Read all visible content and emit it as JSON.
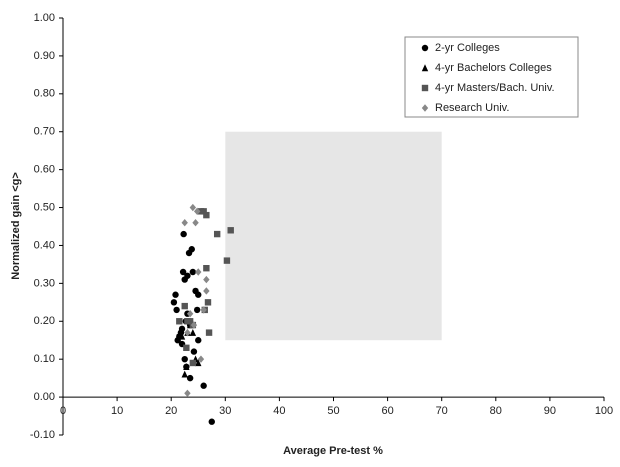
{
  "chart_data": {
    "type": "scatter",
    "x_label": "Average Pre-test %",
    "y_label": "Normalized gain <g>",
    "xlim": [
      0,
      100
    ],
    "xticks": [
      0,
      10,
      20,
      30,
      40,
      50,
      60,
      70,
      80,
      90,
      100
    ],
    "ylim": [
      -0.1,
      1.0
    ],
    "yticks": [
      {
        "value": -0.1,
        "label": "-0.10"
      },
      {
        "value": 0,
        "label": "0.00"
      },
      {
        "value": 0.1,
        "label": "0.10"
      },
      {
        "value": 0.2,
        "label": "0.20"
      },
      {
        "value": 0.3,
        "label": "0.30"
      },
      {
        "value": 0.4,
        "label": "0.40"
      },
      {
        "value": 0.5,
        "label": "0.50"
      },
      {
        "value": 0.6,
        "label": "0.60"
      },
      {
        "value": 0.7,
        "label": "0.70"
      },
      {
        "value": 0.8,
        "label": "0.80"
      },
      {
        "value": 0.9,
        "label": "0.90"
      },
      {
        "value": 1.0,
        "label": "1.00"
      }
    ],
    "grid": false,
    "legend": "top-right",
    "shaded_region": {
      "x": [
        30,
        70
      ],
      "y": [
        0.15,
        0.7
      ],
      "color": "#e6e6e6"
    },
    "series": [
      {
        "name": "2-yr Colleges",
        "color": "#000000",
        "marker": "circle",
        "x": [
          20.5,
          20.8,
          21,
          21.2,
          21.5,
          22,
          22.2,
          22.3,
          22.5,
          22.7,
          22.5,
          22.8,
          23,
          23.3,
          23.8,
          23.5,
          23.5,
          24,
          24.2,
          24.5,
          24.8,
          25,
          26,
          27.5,
          22,
          21.8,
          23,
          25
        ],
        "values": [
          0.25,
          0.27,
          0.23,
          0.15,
          0.16,
          0.18,
          0.33,
          0.43,
          0.31,
          0.2,
          0.1,
          0.08,
          0.32,
          0.38,
          0.39,
          0.19,
          0.05,
          0.33,
          0.12,
          0.28,
          0.23,
          0.15,
          0.03,
          -0.065,
          0.14,
          0.17,
          0.22,
          0.27
        ]
      },
      {
        "name": "4-yr Bachelors Colleges",
        "color": "#000000",
        "marker": "triangle",
        "x": [
          22.5,
          23,
          24,
          24.5,
          23.5,
          22.8,
          25,
          22
        ],
        "values": [
          0.06,
          0.17,
          0.17,
          0.1,
          0.19,
          0.08,
          0.09,
          0.16
        ]
      },
      {
        "name": "4-yr Masters/Bach. Univ.",
        "color": "#555555",
        "marker": "square",
        "x": [
          21.5,
          22.5,
          22.8,
          23,
          23.5,
          24,
          25.5,
          26,
          26.5,
          26.5,
          26.8,
          27,
          26.2,
          28.5,
          30.3,
          31,
          24
        ],
        "values": [
          0.2,
          0.24,
          0.13,
          0.2,
          0.2,
          0.09,
          0.49,
          0.49,
          0.48,
          0.34,
          0.25,
          0.17,
          0.23,
          0.43,
          0.36,
          0.44,
          0.19
        ]
      },
      {
        "name": "Research Univ.",
        "color": "#888888",
        "marker": "diamond",
        "x": [
          22.5,
          23,
          23,
          24,
          24.5,
          24.8,
          25,
          25.5,
          26,
          26.5,
          26.5,
          24.2,
          23.5
        ],
        "values": [
          0.46,
          0.01,
          0.17,
          0.5,
          0.46,
          0.49,
          0.33,
          0.1,
          0.23,
          0.28,
          0.31,
          0.19,
          0.22
        ]
      }
    ]
  }
}
